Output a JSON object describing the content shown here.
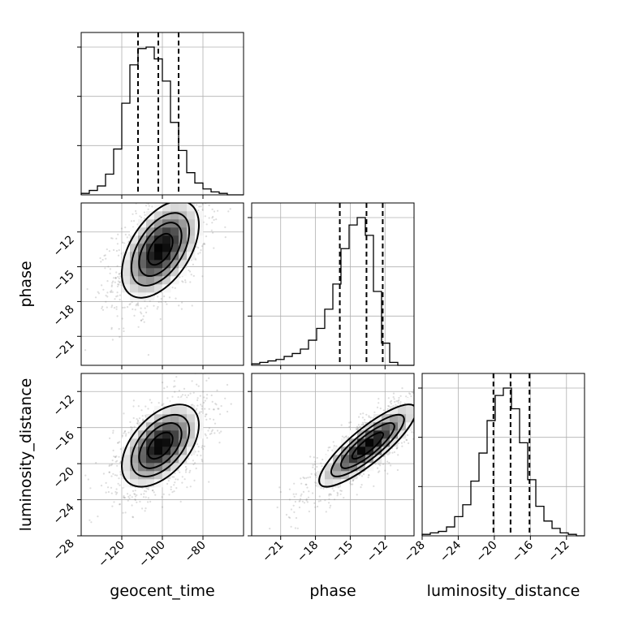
{
  "chart_data": {
    "type": "corner",
    "parameters": [
      {
        "key": "geocent_time",
        "label": "geocent_time",
        "range": [
          -140,
          -60
        ],
        "ticks": [
          -120,
          -100,
          -80
        ],
        "tick_labels": [
          "−120",
          "−100",
          "−80"
        ],
        "mean": -101,
        "sd": 10
      },
      {
        "key": "phase",
        "label": "phase",
        "range": [
          -23.5,
          -9.5
        ],
        "ticks": [
          -21,
          -18,
          -15,
          -12
        ],
        "tick_labels": [
          "−21",
          "−18",
          "−15",
          "−12"
        ],
        "mean": -13.5,
        "sd": 2.2
      },
      {
        "key": "luminosity_distance",
        "label": "luminosity_distance",
        "range": [
          -28,
          -10
        ],
        "ticks": [
          -28,
          -24,
          -20,
          -16,
          -12
        ],
        "tick_labels": [
          "−28",
          "−24",
          "−20",
          "−16",
          "−12"
        ],
        "mean": -18,
        "sd": 2.4
      }
    ],
    "correlations": {
      "geocent_time|phase": 0.5,
      "geocent_time|luminosity_distance": 0.5,
      "phase|luminosity_distance": 0.85
    },
    "histograms": [
      {
        "parameter": "geocent_time",
        "bins": 20,
        "values": [
          1,
          3,
          6,
          14,
          31,
          62,
          88,
          99,
          100,
          92,
          77,
          49,
          30,
          15,
          8,
          4,
          2,
          1,
          0,
          0
        ],
        "quantiles": [
          -112,
          -102,
          -92
        ]
      },
      {
        "parameter": "phase",
        "bins": 20,
        "values": [
          1,
          2,
          3,
          4,
          6,
          8,
          11,
          17,
          25,
          38,
          55,
          79,
          95,
          100,
          88,
          50,
          15,
          2,
          0,
          0
        ],
        "quantiles": [
          -15.9,
          -13.6,
          -12.2
        ]
      },
      {
        "parameter": "luminosity_distance",
        "bins": 20,
        "values": [
          1,
          2,
          3,
          6,
          13,
          21,
          37,
          56,
          78,
          95,
          100,
          86,
          63,
          38,
          20,
          10,
          5,
          2,
          1,
          0
        ],
        "quantiles": [
          -20.1,
          -18.2,
          -16.1
        ]
      }
    ],
    "contour_levels": [
      0.118,
      0.393,
      0.675,
      0.865
    ],
    "scatter_points_per_panel": 1400,
    "grid": true
  }
}
